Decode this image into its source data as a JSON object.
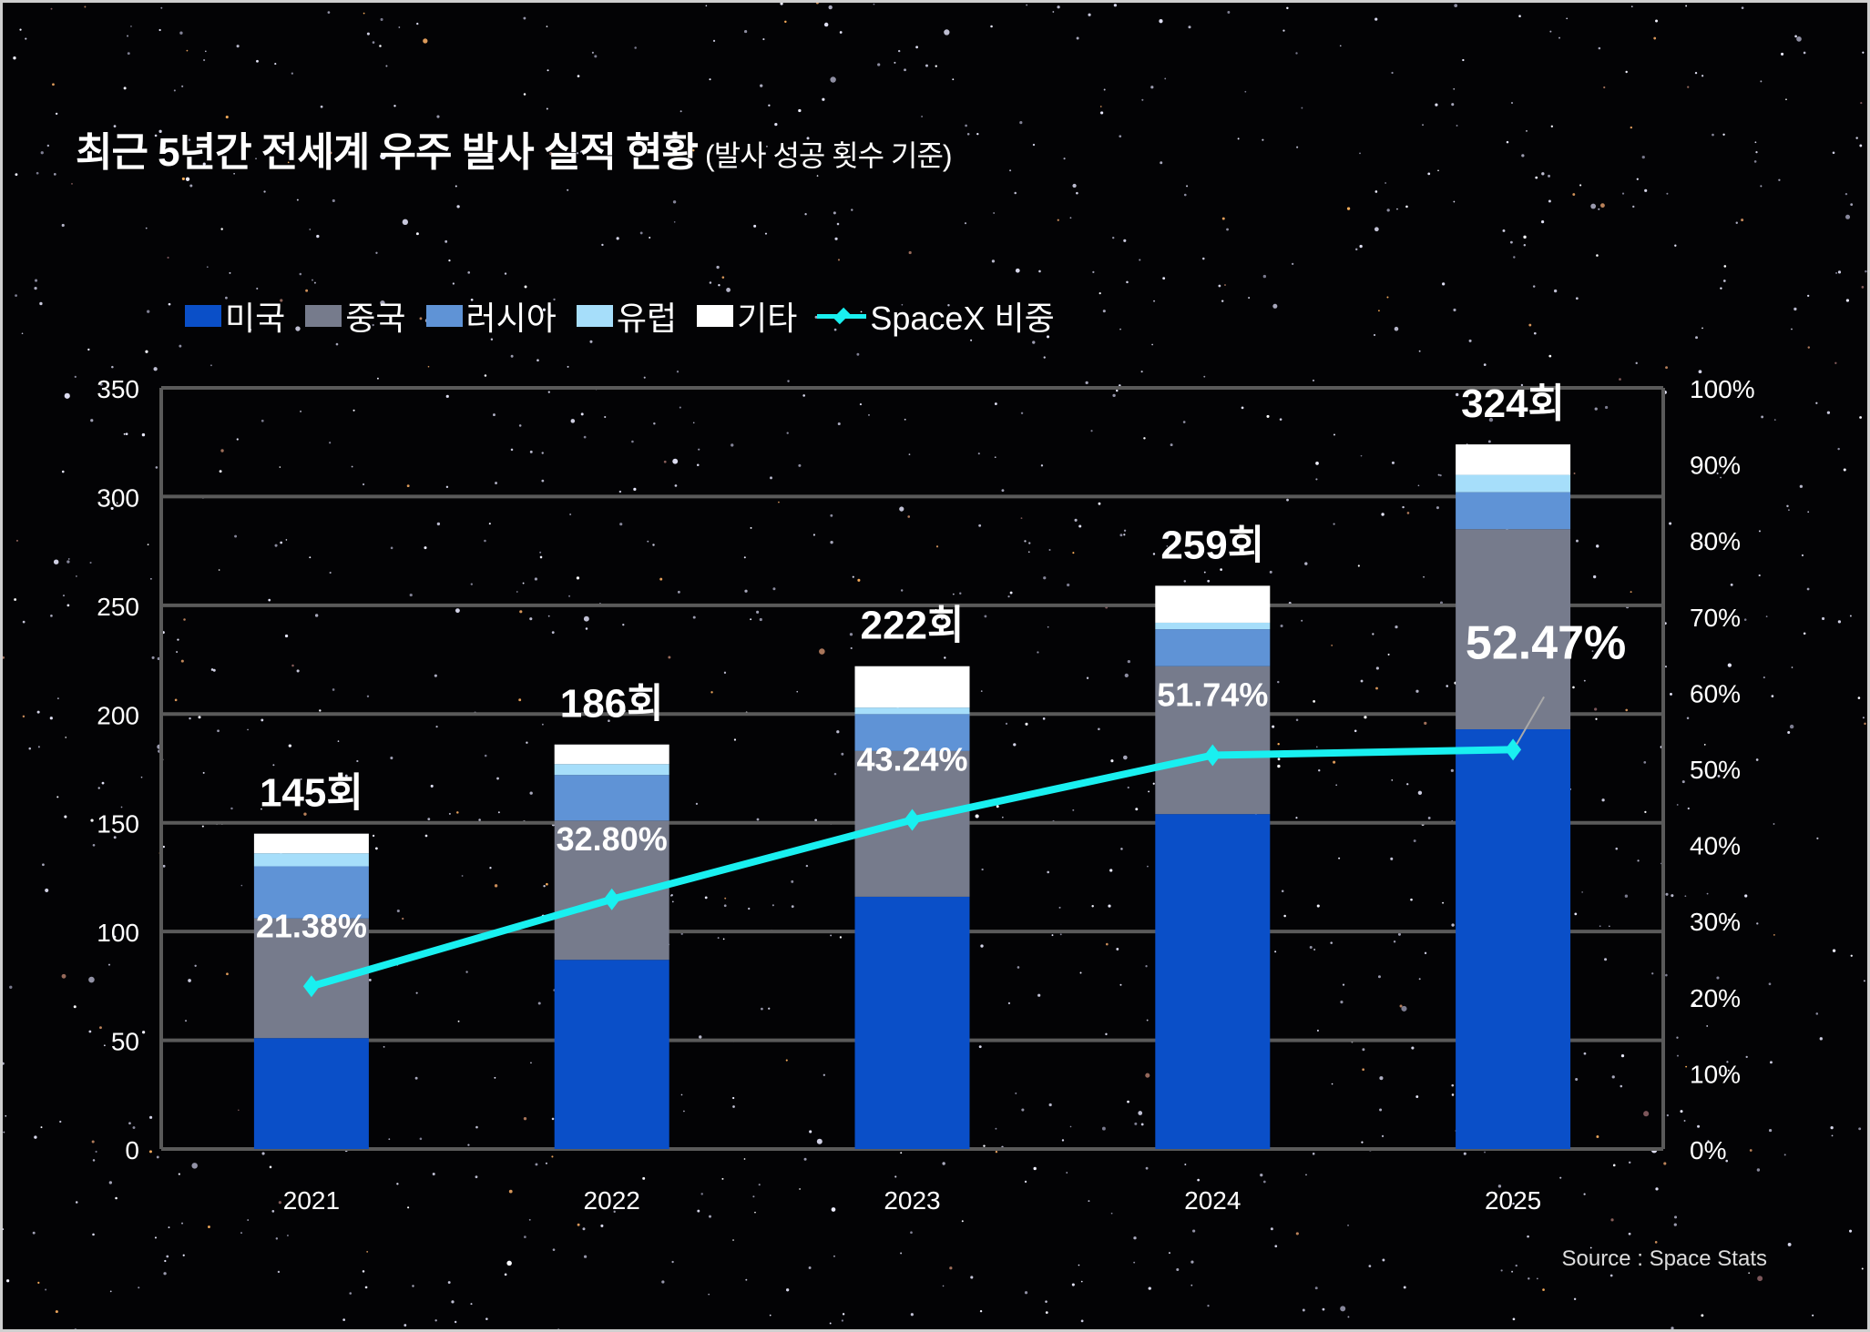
{
  "title": "최근 5년간 전세계 우주 발사 실적 현황",
  "subtitle": "(발사 성공 횟수 기준)",
  "source": "Source : Space Stats",
  "chart_data": {
    "type": "bar",
    "stacked": true,
    "categories": [
      "2021",
      "2022",
      "2023",
      "2024",
      "2025"
    ],
    "series": [
      {
        "name": "미국",
        "color": "#0a4fc8",
        "values": [
          51,
          87,
          116,
          154,
          193
        ]
      },
      {
        "name": "중국",
        "color": "#767b8c",
        "values": [
          55,
          64,
          67,
          68,
          92
        ]
      },
      {
        "name": "러시아",
        "color": "#5f93d6",
        "values": [
          24,
          21,
          17,
          17,
          17
        ]
      },
      {
        "name": "유럽",
        "color": "#a6defa",
        "values": [
          6,
          5,
          3,
          3,
          8
        ]
      },
      {
        "name": "기타",
        "color": "#ffffff",
        "values": [
          9,
          9,
          19,
          17,
          14
        ]
      }
    ],
    "totals": [
      145,
      186,
      222,
      259,
      324
    ],
    "total_labels": [
      "145회",
      "186회",
      "222회",
      "259회",
      "324회"
    ],
    "line_series": {
      "name": "SpaceX 비중",
      "color": "#19f0f0",
      "axis": "right",
      "values": [
        21.38,
        32.8,
        43.24,
        51.74,
        52.47
      ],
      "labels": [
        "21.38%",
        "32.80%",
        "43.24%",
        "51.74%",
        "52.47%"
      ]
    },
    "ylim": [
      0,
      350
    ],
    "yticks": [
      "0",
      "50",
      "100",
      "150",
      "200",
      "250",
      "300",
      "350"
    ],
    "y2lim": [
      0,
      100
    ],
    "y2ticks": [
      "0%",
      "10%",
      "20%",
      "30%",
      "40%",
      "50%",
      "60%",
      "70%",
      "80%",
      "90%",
      "100%"
    ],
    "grid": true,
    "legend": "top-left"
  }
}
